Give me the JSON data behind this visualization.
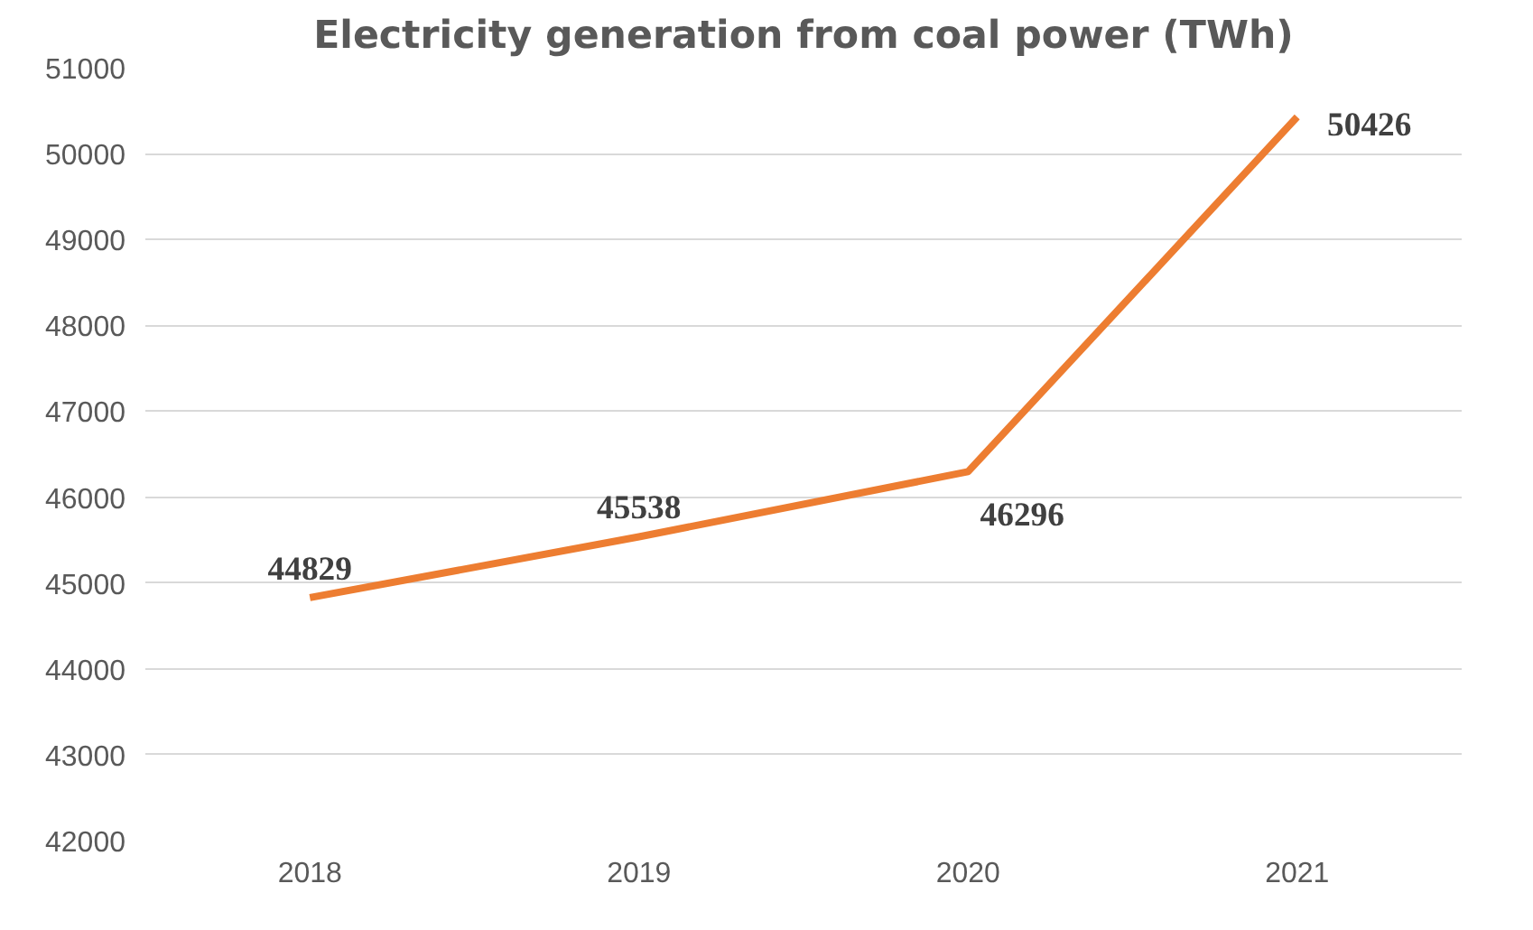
{
  "chart_data": {
    "type": "line",
    "title": "Electricity generation from coal power (TWh)",
    "categories": [
      "2018",
      "2019",
      "2020",
      "2021"
    ],
    "series": [
      {
        "color": "#ed7d31",
        "values": [
          44829,
          45538,
          46296,
          50426
        ]
      }
    ],
    "ylim": [
      42000,
      51000
    ],
    "yticks": [
      42000,
      43000,
      44000,
      45000,
      46000,
      47000,
      48000,
      49000,
      50000,
      51000
    ],
    "grid": "y",
    "data_labels": true,
    "marker": "none",
    "line_style": "solid"
  }
}
